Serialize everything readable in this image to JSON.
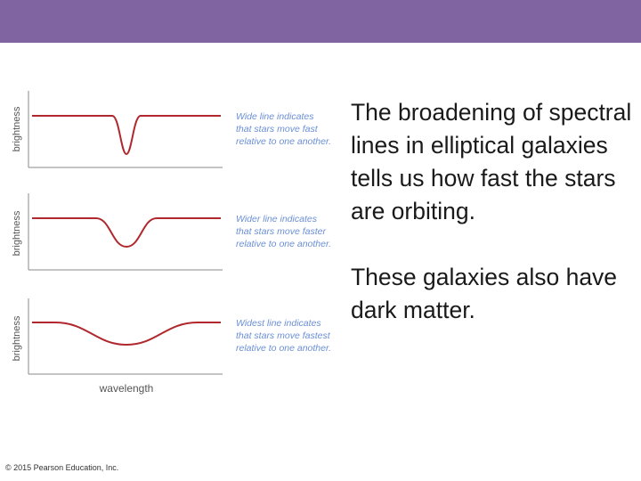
{
  "colors": {
    "header_bar": "#8064a2",
    "spectrum_line": "#b0282d",
    "annotation": "#6b8fd6",
    "axis": "#8a8a8a"
  },
  "figure": {
    "y_label": "brightness",
    "x_label": "wavelength",
    "panels": [
      {
        "line_width": "narrow",
        "caption": [
          "Wide line indicates",
          "that stars move fast",
          "relative to one another."
        ]
      },
      {
        "line_width": "wider",
        "caption": [
          "Wider line indicates",
          "that stars move faster",
          "relative to one another."
        ]
      },
      {
        "line_width": "widest",
        "caption": [
          "Widest line indicates",
          "that stars move fastest",
          "relative to one another."
        ]
      }
    ]
  },
  "body": {
    "paragraph_1": "The broadening of spectral lines in elliptical galaxies tells us how fast the stars are orbiting.",
    "paragraph_2": "These galaxies also have dark matter."
  },
  "footer": {
    "copyright": "© 2015 Pearson Education, Inc."
  }
}
